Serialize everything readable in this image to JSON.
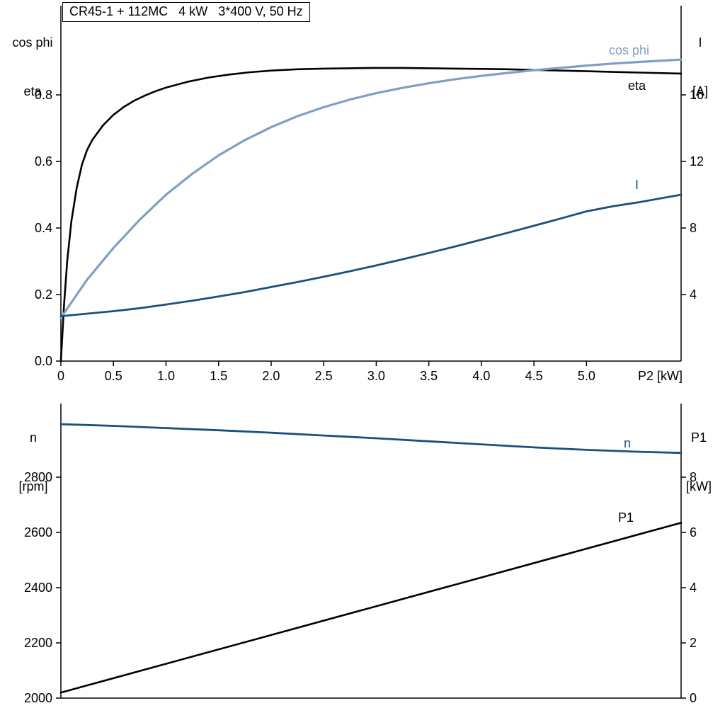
{
  "title_box": "CR45-1 + 112MC   4 kW   3*400 V, 50 Hz",
  "corner_labels": {
    "top_left": [
      "cos phi",
      "eta"
    ],
    "top_right": [
      "I",
      "[A]"
    ],
    "mid_left": [
      "n",
      "[rpm]"
    ],
    "mid_right": [
      "P1",
      "[kW]"
    ]
  },
  "x_axis_name": "P2 [kW]",
  "curve_labels": {
    "cos_phi": "cos phi",
    "eta": "eta",
    "current": "I",
    "speed": "n",
    "p1": "P1"
  },
  "colors": {
    "black": "#000000",
    "steel_blue": "#7e9fc5",
    "dark_blue": "#1b4f7d"
  },
  "chart_data": [
    {
      "type": "line",
      "title": "CR45-1 + 112MC   4 kW   3*400 V, 50 Hz",
      "xlabel": "P2 [kW]",
      "x_range": [
        0,
        5.9
      ],
      "x_tick_values": [
        0,
        0.5,
        1.0,
        1.5,
        2.0,
        2.5,
        3.0,
        3.5,
        4.0,
        4.5,
        5.0
      ],
      "x_tick_labels": [
        "0",
        "0.5",
        "1.0",
        "1.5",
        "2.0",
        "2.5",
        "3.0",
        "3.5",
        "4.0",
        "4.5",
        "5.0"
      ],
      "left_axis": {
        "name": "cos phi / eta",
        "range": [
          0,
          1.0
        ],
        "tick_values": [
          0.0,
          0.2,
          0.4,
          0.6,
          0.8
        ],
        "tick_labels": [
          "0.0",
          "0.2",
          "0.4",
          "0.6",
          "0.8"
        ]
      },
      "right_axis": {
        "name": "I [A]",
        "range": [
          0,
          20
        ],
        "tick_values": [
          4,
          8,
          12,
          16
        ],
        "tick_labels": [
          "4",
          "8",
          "12",
          "16"
        ]
      },
      "series": [
        {
          "name": "eta",
          "axis": "left",
          "color": "black",
          "width": 2.6,
          "points": [
            [
              0,
              0
            ],
            [
              0.03,
              0.17
            ],
            [
              0.06,
              0.3
            ],
            [
              0.1,
              0.42
            ],
            [
              0.15,
              0.52
            ],
            [
              0.2,
              0.59
            ],
            [
              0.25,
              0.635
            ],
            [
              0.3,
              0.665
            ],
            [
              0.4,
              0.708
            ],
            [
              0.5,
              0.74
            ],
            [
              0.6,
              0.764
            ],
            [
              0.7,
              0.783
            ],
            [
              0.8,
              0.798
            ],
            [
              0.9,
              0.811
            ],
            [
              1.0,
              0.822
            ],
            [
              1.2,
              0.839
            ],
            [
              1.4,
              0.852
            ],
            [
              1.6,
              0.861
            ],
            [
              1.8,
              0.868
            ],
            [
              2.0,
              0.873
            ],
            [
              2.25,
              0.877
            ],
            [
              2.5,
              0.879
            ],
            [
              2.75,
              0.88
            ],
            [
              3.0,
              0.881
            ],
            [
              3.25,
              0.881
            ],
            [
              3.5,
              0.88
            ],
            [
              3.75,
              0.879
            ],
            [
              4.0,
              0.878
            ],
            [
              4.25,
              0.877
            ],
            [
              4.5,
              0.875
            ],
            [
              4.75,
              0.873
            ],
            [
              5.0,
              0.871
            ],
            [
              5.25,
              0.869
            ],
            [
              5.5,
              0.867
            ],
            [
              5.9,
              0.864
            ]
          ]
        },
        {
          "name": "cos phi",
          "axis": "left",
          "color": "steel_blue",
          "width": 3.2,
          "points": [
            [
              0,
              0.13
            ],
            [
              0.25,
              0.245
            ],
            [
              0.5,
              0.34
            ],
            [
              0.75,
              0.425
            ],
            [
              1.0,
              0.5
            ],
            [
              1.25,
              0.563
            ],
            [
              1.5,
              0.618
            ],
            [
              1.75,
              0.664
            ],
            [
              2.0,
              0.703
            ],
            [
              2.25,
              0.736
            ],
            [
              2.5,
              0.763
            ],
            [
              2.75,
              0.786
            ],
            [
              3.0,
              0.805
            ],
            [
              3.25,
              0.821
            ],
            [
              3.5,
              0.835
            ],
            [
              3.75,
              0.847
            ],
            [
              4.0,
              0.857
            ],
            [
              4.25,
              0.866
            ],
            [
              4.5,
              0.874
            ],
            [
              4.75,
              0.881
            ],
            [
              5.0,
              0.888
            ],
            [
              5.25,
              0.894
            ],
            [
              5.5,
              0.899
            ],
            [
              5.9,
              0.906
            ]
          ]
        },
        {
          "name": "I",
          "axis": "right",
          "color": "dark_blue",
          "width": 2.8,
          "points": [
            [
              0,
              2.7
            ],
            [
              0.25,
              2.85
            ],
            [
              0.5,
              3.0
            ],
            [
              0.75,
              3.18
            ],
            [
              1.0,
              3.4
            ],
            [
              1.25,
              3.63
            ],
            [
              1.5,
              3.88
            ],
            [
              1.75,
              4.15
            ],
            [
              2.0,
              4.45
            ],
            [
              2.25,
              4.75
            ],
            [
              2.5,
              5.07
            ],
            [
              2.75,
              5.4
            ],
            [
              3.0,
              5.75
            ],
            [
              3.25,
              6.12
            ],
            [
              3.5,
              6.5
            ],
            [
              3.75,
              6.89
            ],
            [
              4.0,
              7.3
            ],
            [
              4.25,
              7.71
            ],
            [
              4.5,
              8.13
            ],
            [
              4.75,
              8.56
            ],
            [
              5.0,
              9.0
            ],
            [
              5.25,
              9.3
            ],
            [
              5.5,
              9.55
            ],
            [
              5.9,
              10.0
            ]
          ]
        }
      ]
    },
    {
      "type": "line",
      "title": "",
      "xlabel": "",
      "x_range": [
        0,
        5.9
      ],
      "left_axis": {
        "name": "n [rpm]",
        "range": [
          2000,
          3000
        ],
        "tick_values": [
          2000,
          2200,
          2400,
          2600,
          2800
        ],
        "tick_labels": [
          "2000",
          "2200",
          "2400",
          "2600",
          "2800"
        ]
      },
      "right_axis": {
        "name": "P1 [kW]",
        "range": [
          0,
          10
        ],
        "tick_values": [
          0,
          2,
          4,
          6,
          8
        ],
        "tick_labels": [
          "0",
          "2",
          "4",
          "6",
          "8"
        ]
      },
      "series": [
        {
          "name": "n",
          "axis": "left",
          "color": "dark_blue",
          "width": 2.8,
          "points": [
            [
              0,
              2992
            ],
            [
              0.5,
              2986
            ],
            [
              1.0,
              2978
            ],
            [
              1.5,
              2970
            ],
            [
              2.0,
              2961
            ],
            [
              2.5,
              2951
            ],
            [
              3.0,
              2941
            ],
            [
              3.5,
              2930
            ],
            [
              4.0,
              2919
            ],
            [
              4.5,
              2908
            ],
            [
              5.0,
              2899
            ],
            [
              5.5,
              2892
            ],
            [
              5.9,
              2888
            ]
          ]
        },
        {
          "name": "P1",
          "axis": "right",
          "color": "black",
          "width": 2.6,
          "points": [
            [
              0,
              0.2
            ],
            [
              5.9,
              6.35
            ]
          ]
        }
      ]
    }
  ]
}
